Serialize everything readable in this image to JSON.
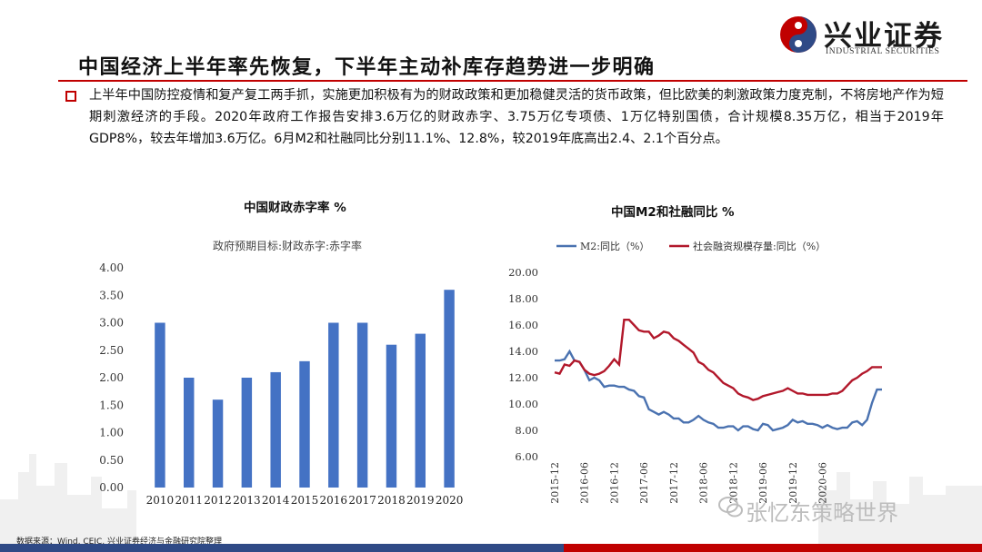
{
  "brand": {
    "name_cn": "兴业证券",
    "name_en": "INDUSTRIAL SECURITIES",
    "colors": {
      "red": "#c00000",
      "navy": "#2f4a86"
    }
  },
  "page_title": "中国经济上半年率先恢复，下半年主动补库存趋势进一步明确",
  "body_text": "上半年中国防控疫情和复产复工两手抓，实施更加积极有为的财政政策和更加稳健灵活的货币政策，但比欧美的刺激政策力度克制，不将房地产作为短期刺激经济的手段。2020年政府工作报告安排3.6万亿的财政赤字、3.75万亿专项债、1万亿特别国债，合计规模8.35万亿，相当于2019年GDP8%，较去年增加3.6万亿。6月M2和社融同比分别11.1%、12.8%，较2019年底高出2.4、2.1个百分点。",
  "watermark": "张忆东策略世界",
  "source": "数据来源：Wind, CEIC, 兴业证券经济与金融研究院整理",
  "chart_data": [
    {
      "type": "bar",
      "title": "中国财政赤字率 %",
      "series": [
        {
          "name": "政府预期目标:财政赤字:赤字率",
          "color": "#4472c4",
          "values": [
            3.0,
            2.0,
            1.6,
            2.0,
            2.1,
            2.3,
            3.0,
            3.0,
            2.6,
            2.8,
            3.6
          ]
        }
      ],
      "categories": [
        "2010",
        "2011",
        "2012",
        "2013",
        "2014",
        "2015",
        "2016",
        "2017",
        "2018",
        "2019",
        "2020"
      ],
      "ylim": [
        0,
        4
      ],
      "yticks": [
        "0.00",
        "0.50",
        "1.00",
        "1.50",
        "2.00",
        "2.50",
        "3.00",
        "3.50",
        "4.00"
      ],
      "grid": false
    },
    {
      "type": "line",
      "title": "中国M2和社融同比 %",
      "legend_position": "top",
      "xticks": [
        "2015-12",
        "2016-06",
        "2016-12",
        "2017-06",
        "2017-12",
        "2018-06",
        "2018-12",
        "2019-06",
        "2019-12",
        "2020-06"
      ],
      "x_start": "2015-12",
      "x_end": "2020-06",
      "ylim": [
        6,
        20
      ],
      "yticks": [
        "6.00",
        "8.00",
        "10.00",
        "12.00",
        "14.00",
        "16.00",
        "18.00",
        "20.00"
      ],
      "grid": false,
      "series": [
        {
          "name": "M2:同比（%）",
          "color": "#4a72b0",
          "values": [
            13.3,
            13.3,
            13.4,
            14.0,
            13.3,
            13.2,
            12.6,
            11.8,
            12.0,
            11.8,
            11.3,
            11.4,
            11.4,
            11.3,
            11.3,
            11.1,
            11.0,
            10.6,
            10.5,
            9.6,
            9.4,
            9.2,
            9.4,
            9.2,
            8.9,
            8.9,
            8.6,
            8.6,
            8.8,
            9.1,
            8.8,
            8.6,
            8.5,
            8.2,
            8.2,
            8.3,
            8.3,
            8.0,
            8.3,
            8.3,
            8.1,
            8.0,
            8.5,
            8.4,
            8.0,
            8.1,
            8.2,
            8.4,
            8.8,
            8.6,
            8.7,
            8.5,
            8.5,
            8.4,
            8.2,
            8.4,
            8.2,
            8.1,
            8.2,
            8.2,
            8.6,
            8.7,
            8.4,
            8.8,
            10.1,
            11.1,
            11.1
          ]
        },
        {
          "name": "社会融资规模存量:同比（%）",
          "color": "#b2182b",
          "values": [
            12.4,
            12.3,
            13.0,
            12.9,
            13.3,
            13.2,
            12.6,
            12.3,
            12.2,
            12.3,
            12.5,
            12.9,
            13.4,
            13.0,
            16.4,
            16.4,
            16.0,
            15.6,
            15.5,
            15.5,
            15.0,
            15.2,
            15.5,
            15.4,
            15.0,
            14.8,
            14.5,
            14.2,
            13.9,
            13.2,
            13.0,
            12.6,
            12.4,
            12.0,
            11.6,
            11.4,
            11.2,
            10.8,
            10.6,
            10.5,
            10.3,
            10.4,
            10.6,
            10.7,
            10.8,
            10.9,
            11.0,
            11.2,
            11.0,
            10.8,
            10.8,
            10.7,
            10.7,
            10.7,
            10.7,
            10.7,
            10.8,
            10.8,
            11.0,
            11.4,
            11.8,
            12.0,
            12.3,
            12.5,
            12.8,
            12.8,
            12.8
          ]
        }
      ]
    }
  ]
}
